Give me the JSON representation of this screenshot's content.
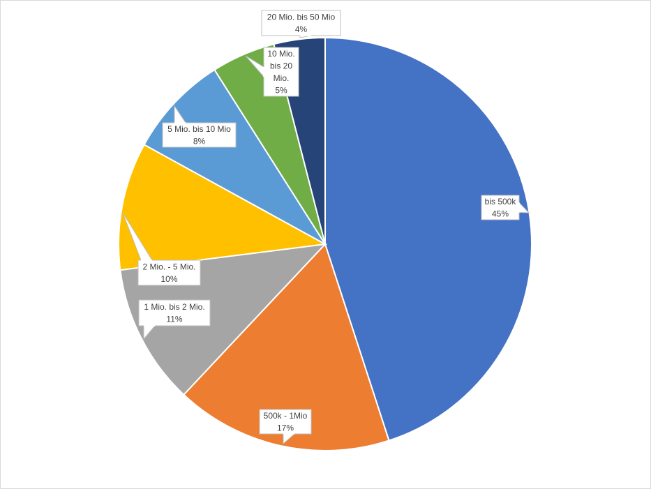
{
  "chart_data": {
    "type": "pie",
    "title": "",
    "categories": [
      "bis 500k",
      "500k - 1Mio",
      "1 Mio. bis 2 Mio.",
      "2 Mio. - 5 Mio.",
      "5 Mio. bis 10 Mio",
      "10 Mio. bis 20 Mio.",
      "20 Mio. bis 50 Mio"
    ],
    "values": [
      45,
      17,
      11,
      10,
      8,
      5,
      4
    ],
    "value_labels": [
      "45%",
      "17%",
      "11%",
      "10%",
      "8%",
      "5%",
      "4%"
    ],
    "label_lines": [
      [
        "bis 500k",
        "45%"
      ],
      [
        "500k - 1Mio",
        "17%"
      ],
      [
        "1 Mio. bis 2 Mio.",
        "11%"
      ],
      [
        "2 Mio. - 5 Mio.",
        "10%"
      ],
      [
        "5 Mio. bis 10 Mio",
        "8%"
      ],
      [
        "10 Mio.",
        "bis 20",
        "Mio.",
        "5%"
      ],
      [
        "20 Mio. bis 50 Mio",
        "4%"
      ]
    ],
    "colors": [
      "#4472C4",
      "#ED7D31",
      "#A5A5A5",
      "#FFC000",
      "#5B9BD5",
      "#70AD47",
      "#264478"
    ],
    "legend": "none",
    "start_angle": "12 o'clock",
    "direction": "clockwise"
  }
}
